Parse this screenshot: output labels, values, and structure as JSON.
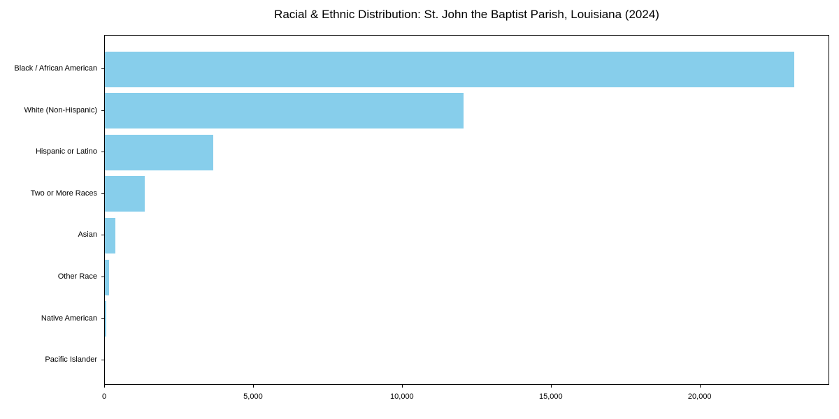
{
  "chart_data": {
    "type": "bar",
    "orientation": "horizontal",
    "title": "Racial & Ethnic Distribution: St. John the Baptist Parish, Louisiana (2024)",
    "categories": [
      "Black / African American",
      "White (Non-Hispanic)",
      "Hispanic or Latino",
      "Two or More Races",
      "Asian",
      "Other Race",
      "Native American",
      "Pacific Islander"
    ],
    "values": [
      23190,
      12070,
      3640,
      1340,
      350,
      130,
      50,
      0
    ],
    "xlabel": "",
    "ylabel": "",
    "xlim": [
      0,
      24350
    ],
    "x_ticks": [
      0,
      5000,
      10000,
      15000,
      20000
    ],
    "x_tick_labels": [
      "0",
      "5,000",
      "10,000",
      "15,000",
      "20,000"
    ],
    "bar_color": "#87CEEB",
    "background_color": "#FFFFFF",
    "axis_color": "#000000",
    "grid": false,
    "legend": false
  }
}
